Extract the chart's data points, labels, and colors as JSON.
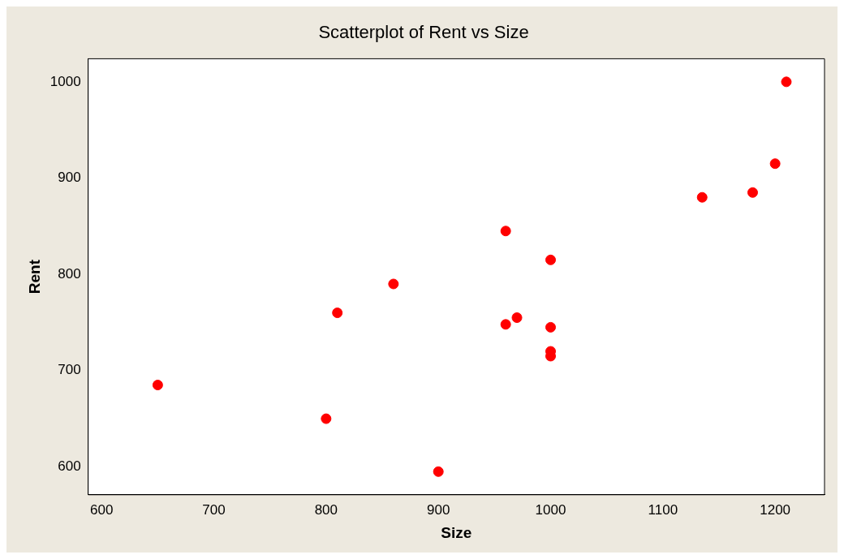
{
  "chart_data": {
    "type": "scatter",
    "title": "Scatterplot of Rent vs Size",
    "xlabel": "Size",
    "ylabel": "Rent",
    "series": [
      {
        "color": "#ff0000",
        "x": [
          650,
          800,
          810,
          860,
          900,
          960,
          960,
          970,
          1000,
          1000,
          1000,
          1000,
          1135,
          1180,
          1200,
          1210
        ],
        "values": [
          685,
          650,
          760,
          790,
          595,
          845,
          748,
          755,
          815,
          745,
          720,
          715,
          880,
          885,
          915,
          1000
        ]
      }
    ],
    "xlim": [
      588,
      1244
    ],
    "xticks": [
      600,
      700,
      800,
      900,
      1000,
      1100,
      1200
    ],
    "ylim": [
      571,
      1024
    ],
    "yticks": [
      600,
      700,
      800,
      900,
      1000
    ],
    "grid": false,
    "legend": false,
    "marker": "circle"
  }
}
